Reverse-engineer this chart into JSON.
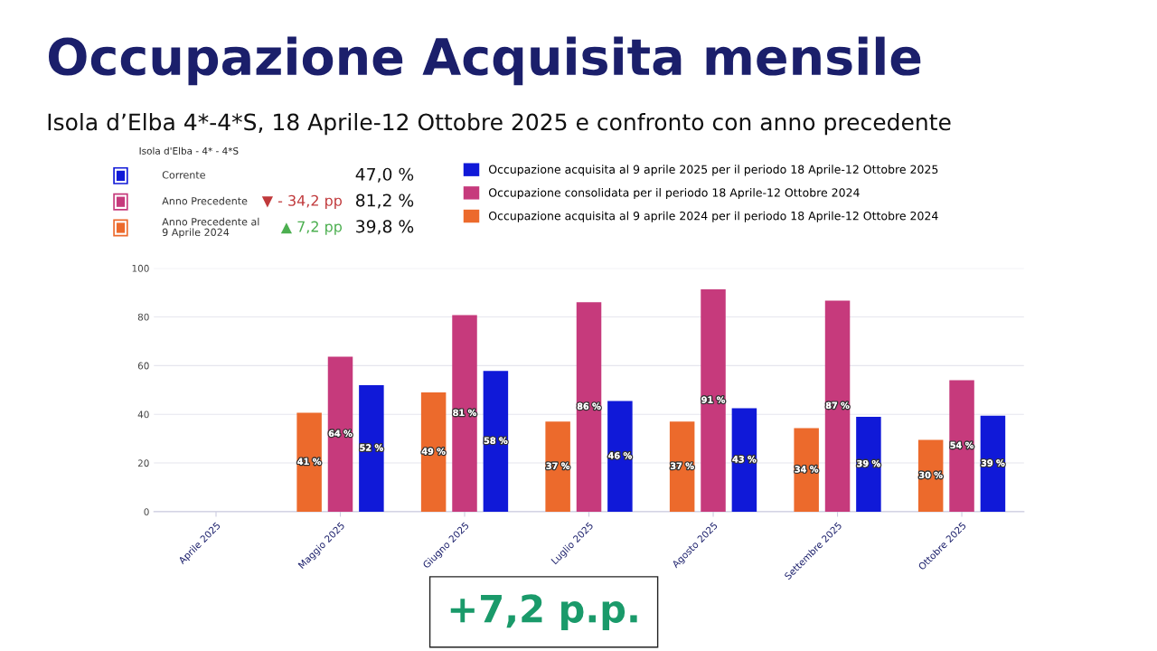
{
  "chart_data": {
    "type": "bar",
    "title": "Occupazione Acquisita mensile",
    "subtitle": "Isola d’Elba 4*-4*S, 18 Aprile-12 Ottobre 2025 e confronto con anno precedente",
    "categories": [
      "Aprile 2025",
      "Maggio 2025",
      "Giugno 2025",
      "Luglio 2025",
      "Agosto 2025",
      "Settembre 2025",
      "Ottobre 2025"
    ],
    "series": [
      {
        "name": "Occupazione acquisita al 9 aprile 2024 per il periodo 18 Aprile-12 Ottobre 2024",
        "color": "#ec6a2c",
        "values": [
          null,
          40.6,
          49,
          37,
          37,
          34.3,
          29.5
        ],
        "value_labels": [
          null,
          "41 %",
          "49 %",
          "37 %",
          "37 %",
          "34 %",
          "30 %"
        ]
      },
      {
        "name": "Occupazione consolidata per il periodo 18 Aprile-12 Ottobre 2024",
        "color": "#c63a7c",
        "values": [
          null,
          63.7,
          80.7,
          86,
          91.3,
          86.7,
          54
        ],
        "value_labels": [
          null,
          "64 %",
          "81 %",
          "86 %",
          "91 %",
          "87 %",
          "54 %"
        ]
      },
      {
        "name": "Occupazione acquisita al 9 aprile 2025 per il periodo 18 Aprile-12 Ottobre 2025",
        "color": "#1019d8",
        "values": [
          null,
          52,
          57.8,
          45.5,
          42.5,
          39,
          39.4
        ],
        "value_labels": [
          null,
          "52 %",
          "58 %",
          "46 %",
          "43 %",
          "39 %",
          "39 %"
        ]
      }
    ],
    "ylim": [
      0,
      100
    ],
    "yticks": [
      0,
      20,
      40,
      60,
      80,
      100
    ],
    "grid": "y",
    "legend": "top right",
    "annotations": [
      "Isola d'Elba - 4* - 4*S",
      "Corrente",
      "47,0 %",
      "Anno Precedente",
      "▼ - 34,2 pp",
      "81,2 %",
      "Anno Precedente al\n9 Aprile 2024",
      "▲ 7,2 pp",
      "39,8 %",
      "+7,2 p.p."
    ]
  }
}
